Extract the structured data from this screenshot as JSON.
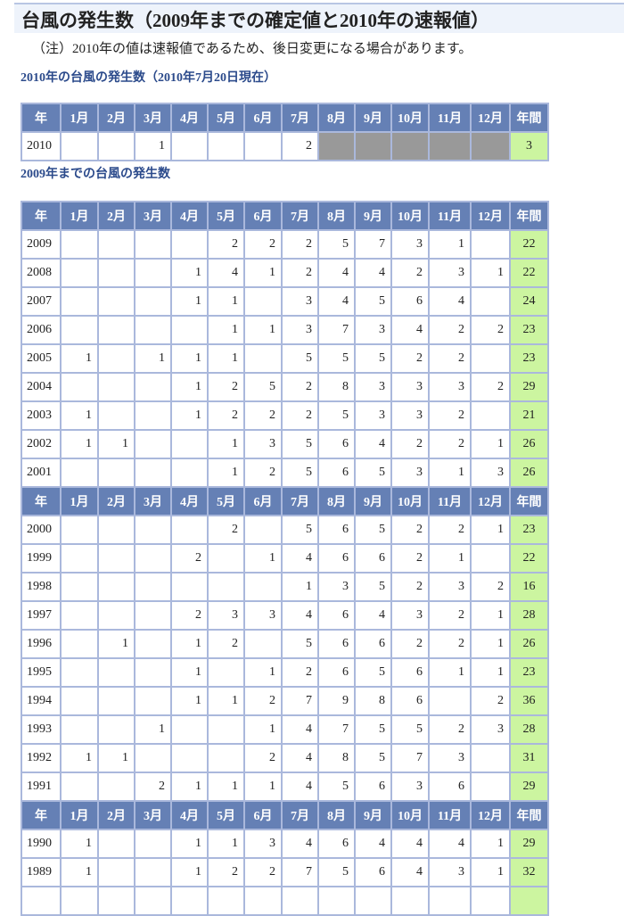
{
  "title": "台風の発生数（2009年までの確定値と2010年の速報値）",
  "note": "（注）2010年の値は速報値であるため、後日変更になる場合があります。",
  "colors": {
    "header": "#6580b5",
    "total": "#ccf5a0",
    "unavailable": "#999999",
    "section_title": "#2b4a8b"
  },
  "headers": [
    "年",
    "1月",
    "2月",
    "3月",
    "4月",
    "5月",
    "6月",
    "7月",
    "8月",
    "9月",
    "10月",
    "11月",
    "12月",
    "年間"
  ],
  "table2010": {
    "section_title": "2010年の台風の発生数（2010年7月20日現在）",
    "rows": [
      {
        "year": "2010",
        "months": [
          "",
          "",
          "1",
          "",
          "",
          "",
          "2",
          null,
          null,
          null,
          null,
          null
        ],
        "total": "3"
      }
    ]
  },
  "table_past": {
    "section_title": "2009年までの台風の発生数",
    "groups": [
      [
        {
          "year": "2009",
          "months": [
            "",
            "",
            "",
            "",
            "2",
            "2",
            "2",
            "5",
            "7",
            "3",
            "1",
            ""
          ],
          "total": "22"
        },
        {
          "year": "2008",
          "months": [
            "",
            "",
            "",
            "1",
            "4",
            "1",
            "2",
            "4",
            "4",
            "2",
            "3",
            "1"
          ],
          "total": "22"
        },
        {
          "year": "2007",
          "months": [
            "",
            "",
            "",
            "1",
            "1",
            "",
            "3",
            "4",
            "5",
            "6",
            "4",
            ""
          ],
          "total": "24"
        },
        {
          "year": "2006",
          "months": [
            "",
            "",
            "",
            "",
            "1",
            "1",
            "3",
            "7",
            "3",
            "4",
            "2",
            "2"
          ],
          "total": "23"
        },
        {
          "year": "2005",
          "months": [
            "1",
            "",
            "1",
            "1",
            "1",
            "",
            "5",
            "5",
            "5",
            "2",
            "2",
            ""
          ],
          "total": "23"
        },
        {
          "year": "2004",
          "months": [
            "",
            "",
            "",
            "1",
            "2",
            "5",
            "2",
            "8",
            "3",
            "3",
            "3",
            "2"
          ],
          "total": "29"
        },
        {
          "year": "2003",
          "months": [
            "1",
            "",
            "",
            "1",
            "2",
            "2",
            "2",
            "5",
            "3",
            "3",
            "2",
            ""
          ],
          "total": "21"
        },
        {
          "year": "2002",
          "months": [
            "1",
            "1",
            "",
            "",
            "1",
            "3",
            "5",
            "6",
            "4",
            "2",
            "2",
            "1"
          ],
          "total": "26"
        },
        {
          "year": "2001",
          "months": [
            "",
            "",
            "",
            "",
            "1",
            "2",
            "5",
            "6",
            "5",
            "3",
            "1",
            "3"
          ],
          "total": "26"
        }
      ],
      [
        {
          "year": "2000",
          "months": [
            "",
            "",
            "",
            "",
            "2",
            "",
            "5",
            "6",
            "5",
            "2",
            "2",
            "1"
          ],
          "total": "23"
        },
        {
          "year": "1999",
          "months": [
            "",
            "",
            "",
            "2",
            "",
            "1",
            "4",
            "6",
            "6",
            "2",
            "1",
            ""
          ],
          "total": "22"
        },
        {
          "year": "1998",
          "months": [
            "",
            "",
            "",
            "",
            "",
            "",
            "1",
            "3",
            "5",
            "2",
            "3",
            "2"
          ],
          "total": "16"
        },
        {
          "year": "1997",
          "months": [
            "",
            "",
            "",
            "2",
            "3",
            "3",
            "4",
            "6",
            "4",
            "3",
            "2",
            "1"
          ],
          "total": "28"
        },
        {
          "year": "1996",
          "months": [
            "",
            "1",
            "",
            "1",
            "2",
            "",
            "5",
            "6",
            "6",
            "2",
            "2",
            "1"
          ],
          "total": "26"
        },
        {
          "year": "1995",
          "months": [
            "",
            "",
            "",
            "1",
            "",
            "1",
            "2",
            "6",
            "5",
            "6",
            "1",
            "1"
          ],
          "total": "23"
        },
        {
          "year": "1994",
          "months": [
            "",
            "",
            "",
            "1",
            "1",
            "2",
            "7",
            "9",
            "8",
            "6",
            "",
            "2"
          ],
          "total": "36"
        },
        {
          "year": "1993",
          "months": [
            "",
            "",
            "1",
            "",
            "",
            "1",
            "4",
            "7",
            "5",
            "5",
            "2",
            "3"
          ],
          "total": "28"
        },
        {
          "year": "1992",
          "months": [
            "1",
            "1",
            "",
            "",
            "",
            "2",
            "4",
            "8",
            "5",
            "7",
            "3",
            ""
          ],
          "total": "31"
        },
        {
          "year": "1991",
          "months": [
            "",
            "",
            "2",
            "1",
            "1",
            "1",
            "4",
            "5",
            "6",
            "3",
            "6",
            ""
          ],
          "total": "29"
        }
      ],
      [
        {
          "year": "1990",
          "months": [
            "1",
            "",
            "",
            "1",
            "1",
            "3",
            "4",
            "6",
            "4",
            "4",
            "4",
            "1"
          ],
          "total": "29"
        },
        {
          "year": "1989",
          "months": [
            "1",
            "",
            "",
            "1",
            "2",
            "2",
            "7",
            "5",
            "6",
            "4",
            "3",
            "1"
          ],
          "total": "32"
        },
        {
          "year": "",
          "months": [
            "",
            "",
            "",
            "",
            "",
            "",
            "",
            "",
            "",
            "",
            "",
            ""
          ],
          "total": ""
        }
      ]
    ]
  }
}
